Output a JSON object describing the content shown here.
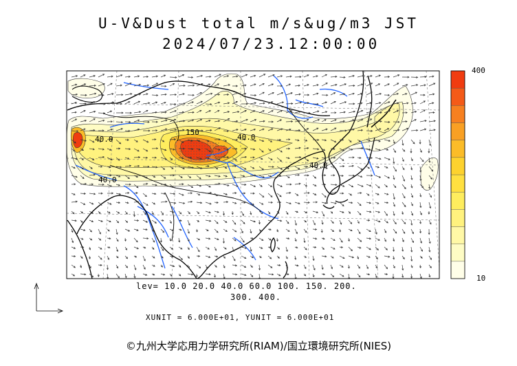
{
  "title": {
    "line1": "U-V&Dust total m/s&ug/m3 JST",
    "line2": "2024/07/23.12:00:00"
  },
  "legend": {
    "lev_line1": "lev= 10.0 20.0 40.0 60.0 100. 150. 200.",
    "lev_line2": "300. 400.",
    "levels": [
      10,
      20,
      40,
      60,
      100,
      150,
      200,
      300,
      400
    ],
    "colorbar_max": "400",
    "colorbar_min": "10",
    "colors": [
      "#fffee8",
      "#fefcc4",
      "#fff8a6",
      "#fff27e",
      "#feed5e",
      "#ffe040",
      "#fdd22e",
      "#fbbc28",
      "#f9a024",
      "#f78020",
      "#f45a18",
      "#f03c10"
    ]
  },
  "units": "XUNIT = 6.000E+01, YUNIT = 6.000E+01",
  "contour_labels": [
    "40.0",
    "150",
    "40.0",
    "40.0",
    "40.0"
  ],
  "copyright": "©九州大学応用力学研究所(RIAM)/国立環境研究所(NIES)"
}
